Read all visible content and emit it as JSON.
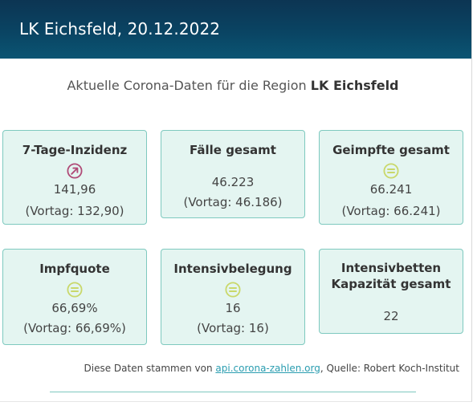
{
  "header": {
    "title": "LK Eichsfeld, 20.12.2022"
  },
  "subtitle": {
    "prefix": "Aktuelle Corona-Daten für die Region",
    "region": "LK Eichsfeld"
  },
  "cards": [
    {
      "label": "7-Tage-Inzidenz",
      "value": "141,96",
      "previous": "(Vortag: 132,90)",
      "trend": "up",
      "trend_color": "#b04a77"
    },
    {
      "label": "Fälle gesamt",
      "value": "46.223",
      "previous": "(Vortag: 46.186)",
      "trend": "none"
    },
    {
      "label": "Geimpfte gesamt",
      "value": "66.241",
      "previous": "(Vortag: 66.241)",
      "trend": "equal",
      "trend_color": "#c9d86a"
    },
    {
      "label": "Impfquote",
      "value": "66,69%",
      "previous": "(Vortag: 66,69%)",
      "trend": "equal",
      "trend_color": "#c9d86a"
    },
    {
      "label": "Intensivbelegung",
      "value": "16",
      "previous": "(Vortag: 16)",
      "trend": "equal",
      "trend_color": "#c9d86a"
    },
    {
      "label_line1": "Intensivbetten",
      "label_line2": "Kapazität gesamt",
      "value": "22",
      "trend": "none"
    }
  ],
  "footer": {
    "prefix": "Diese Daten stammen von",
    "link_text": "api.corona-zahlen.org",
    "suffix": ", Quelle: Robert Koch-Institut"
  },
  "colors": {
    "header_dark": "#0c3553",
    "card_bg": "#e4f5f1",
    "card_border": "#7ec9bf",
    "link": "#2a9db0"
  }
}
